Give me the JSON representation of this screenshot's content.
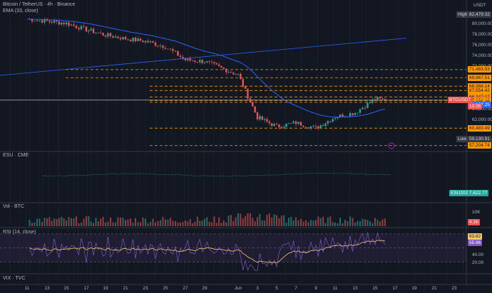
{
  "header": {
    "symbol": "Bitcoin / TetherUS · 4h · Binance",
    "indicator": "EMA (33, close)",
    "currency": "USDT"
  },
  "colors": {
    "background": "#131722",
    "grid": "#2a2e39",
    "ema": "#2962ff",
    "level": "#ff9800",
    "up": "#26a69a",
    "down": "#ef5350",
    "rsi": "#7e57c2",
    "rsi_ma": "#f7c76b"
  },
  "price_axis": {
    "ticks": [
      "80,000.00",
      "78,000.00",
      "76,000.00",
      "74,000.00",
      "72,000.00",
      "70,000.00",
      "68,000.00",
      "64,000.00",
      "62,000.00",
      "58,000.00"
    ],
    "high_label": "High",
    "high_value": "82,479.32",
    "low_label": "Low",
    "low_value": "59,130.91",
    "levels": [
      "71,483.93",
      "69,967.51",
      "68,368.14",
      "67,554.42",
      "66,347.07",
      "65,749.93",
      "65,674.45",
      "65,335.36",
      "64,897.25",
      "60,483.49",
      "57,204.74"
    ],
    "btc_tag": "BTCUSDT",
    "btc_price": "65,749.93",
    "btc_countdown": "13:26",
    "ema_value": "64,897.25"
  },
  "es_pane": {
    "title": "ESU · CME",
    "tag": "ESU2026",
    "tag_value": "7,622.77"
  },
  "volume_pane": {
    "title": "Vol · BTC",
    "tick": "10K",
    "value": "4.1K"
  },
  "rsi_pane": {
    "title": "RSI (14, close)",
    "rsi_value": "63.62",
    "ma_value": "55.96",
    "ticks": [
      "60.00",
      "40.00",
      "20.00"
    ]
  },
  "vix_pane": {
    "title": "VIX · TVC"
  },
  "date_axis": {
    "labels": [
      "11",
      "13",
      "15",
      "17",
      "19",
      "21",
      "23",
      "25",
      "27",
      "29",
      "Jun",
      "3",
      "5",
      "7",
      "9",
      "11",
      "13",
      "15",
      "17",
      "19",
      "21",
      "23"
    ]
  },
  "chart_data": {
    "type": "candlestick",
    "interval": "4h",
    "x_labels": [
      "11",
      "13",
      "15",
      "17",
      "19",
      "21",
      "23",
      "25",
      "27",
      "29",
      "Jun",
      "3",
      "5",
      "7",
      "9",
      "11",
      "13",
      "15",
      "17",
      "19",
      "21",
      "23"
    ],
    "close_anchors": [
      [
        "11",
        81000
      ],
      [
        "13",
        80600
      ],
      [
        "15",
        80200
      ],
      [
        "17",
        79000
      ],
      [
        "19",
        78000
      ],
      [
        "21",
        77300
      ],
      [
        "23",
        76800
      ],
      [
        "25",
        75800
      ],
      [
        "27",
        73300
      ],
      [
        "29",
        73000
      ],
      [
        "Jun",
        70500
      ],
      [
        "3",
        62500
      ],
      [
        "5",
        60800
      ],
      [
        "7",
        61500
      ],
      [
        "9",
        60500
      ],
      [
        "11",
        62600
      ],
      [
        "13",
        63400
      ],
      [
        "15",
        66000
      ],
      [
        "16",
        65750
      ]
    ],
    "ema": {
      "name": "EMA (33, close)",
      "last": 64897.25
    },
    "horizontal_levels": [
      71483.93,
      69967.51,
      68368.14,
      67554.42,
      66347.07,
      65674.45,
      65335.36,
      60483.49,
      57204.74
    ],
    "high": 82479.32,
    "low": 59130.91,
    "last": 65749.93,
    "ylim": [
      56500,
      83500
    ],
    "rsi": {
      "last": 63.62,
      "ma_last": 55.96,
      "ylim": [
        15,
        75
      ]
    },
    "volume": {
      "last": 4100
    },
    "esu_last": 7622.77,
    "grid": true
  }
}
